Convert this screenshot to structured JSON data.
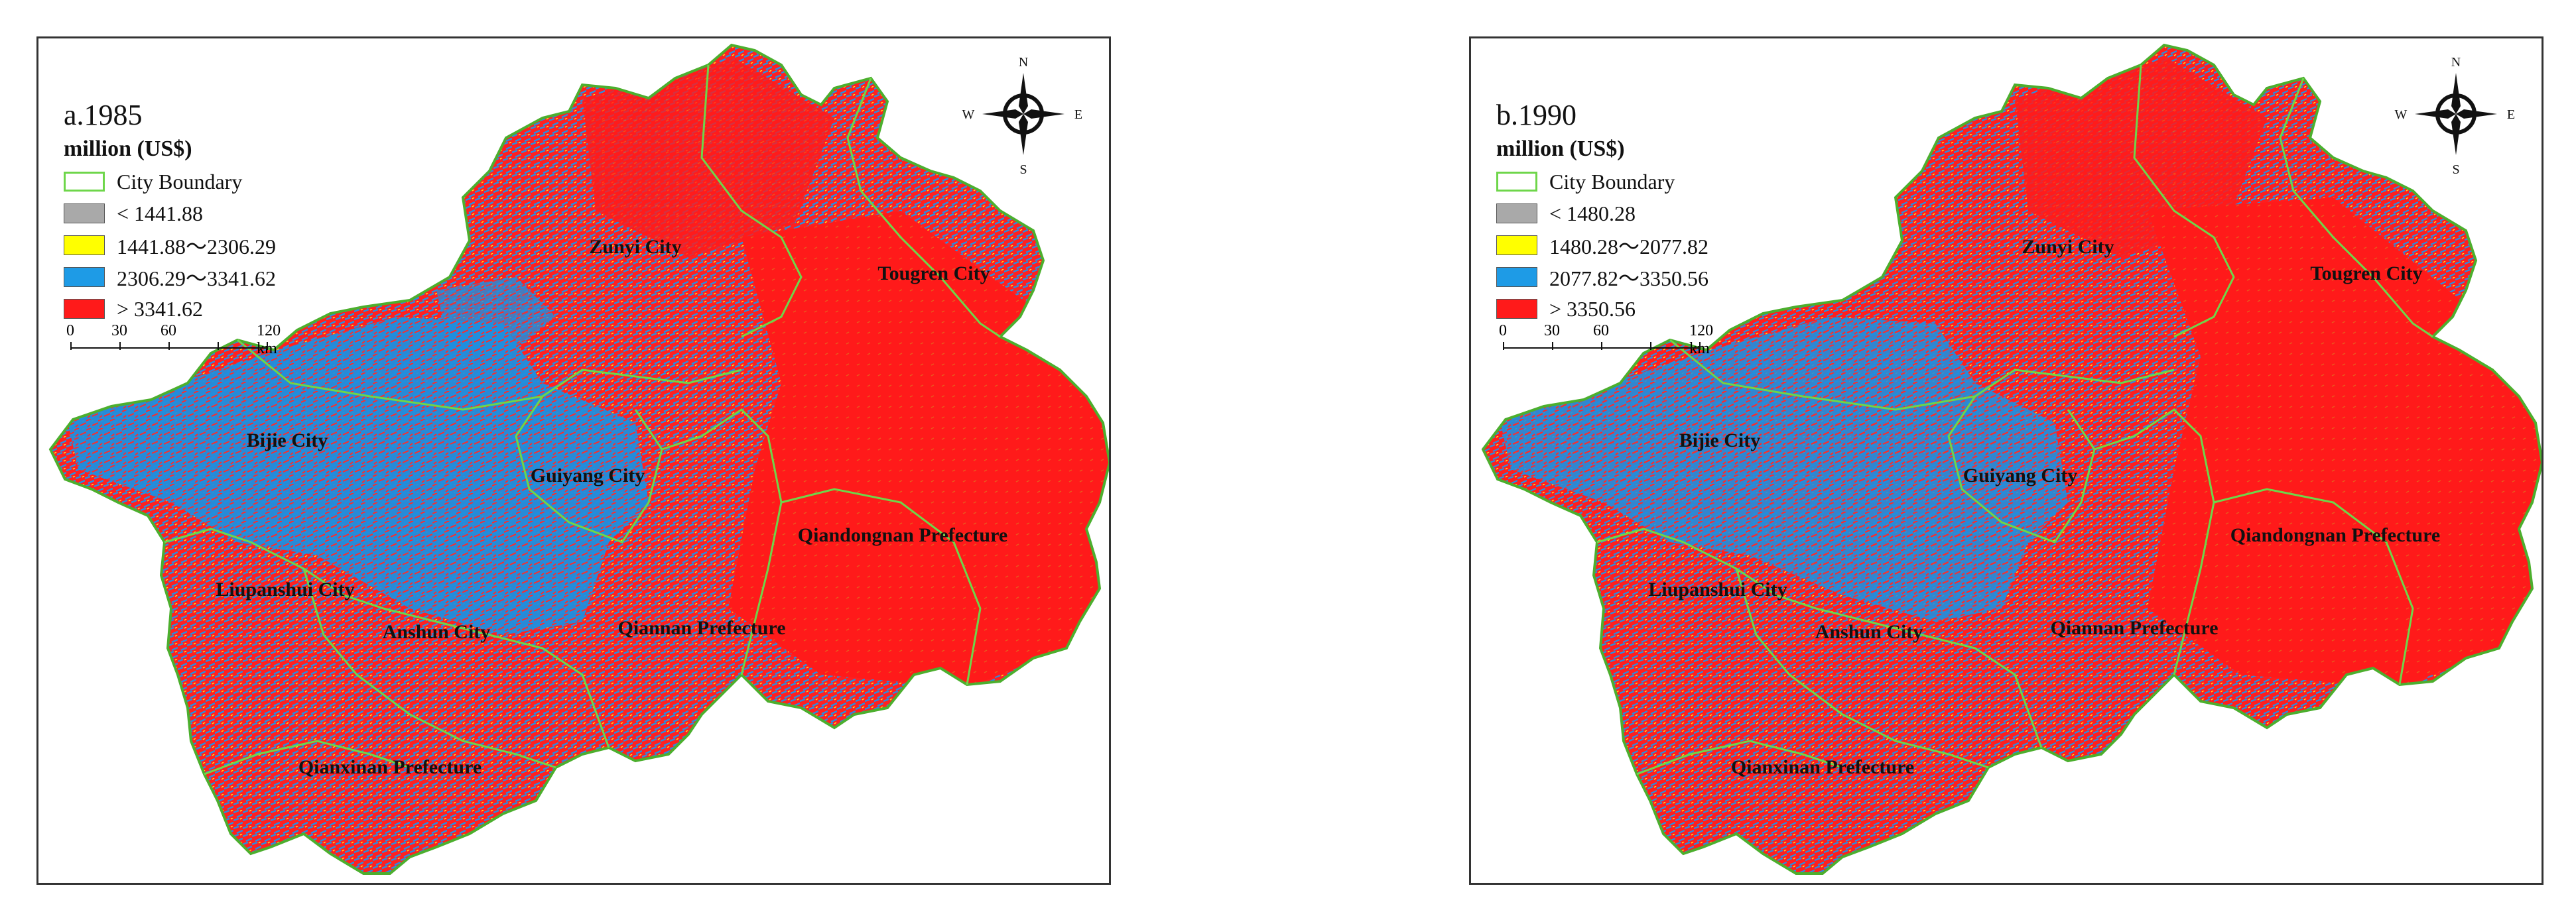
{
  "panels": [
    {
      "label": "a.1985",
      "legend": {
        "title": "million (US$)",
        "boundary": "City Boundary",
        "classes": [
          {
            "text": "< 1441.88",
            "color": "#a9a9a9"
          },
          {
            "text": "1441.88～2306.29",
            "color": "#ffff00"
          },
          {
            "text": "2306.29～3341.62",
            "color": "#1e9be6"
          },
          {
            "text": "> 3341.62",
            "color": "#ff1a1a"
          }
        ]
      }
    },
    {
      "label": "b.1990",
      "legend": {
        "title": "million (US$)",
        "boundary": "City Boundary",
        "classes": [
          {
            "text": "< 1480.28",
            "color": "#a9a9a9"
          },
          {
            "text": "1480.28～2077.82",
            "color": "#ffff00"
          },
          {
            "text": "2077.82～3350.56",
            "color": "#1e9be6"
          },
          {
            "text": "> 3350.56",
            "color": "#ff1a1a"
          }
        ]
      }
    }
  ],
  "scale": {
    "ticks": [
      "0",
      "30",
      "60"
    ],
    "end": "120 km"
  },
  "compass": {
    "n": "N",
    "s": "S",
    "e": "E",
    "w": "W"
  },
  "cities": {
    "zunyi": "Zunyi City",
    "tongren": "Tougren City",
    "bijie": "Bijie City",
    "guiyang": "Guiyang City",
    "qiandongnan": "Qiandongnan Prefecture",
    "liupanshui": "Liupanshui City",
    "anshun": "Anshun City",
    "qiannan": "Qiannan Prefecture",
    "qianxinan": "Qianxinan Prefecture"
  },
  "colors": {
    "boundary": "#6ed64a",
    "outline": "#4caf2e",
    "high": "#ff1a1a",
    "mid": "#1e9be6",
    "low": "#ffff00"
  }
}
